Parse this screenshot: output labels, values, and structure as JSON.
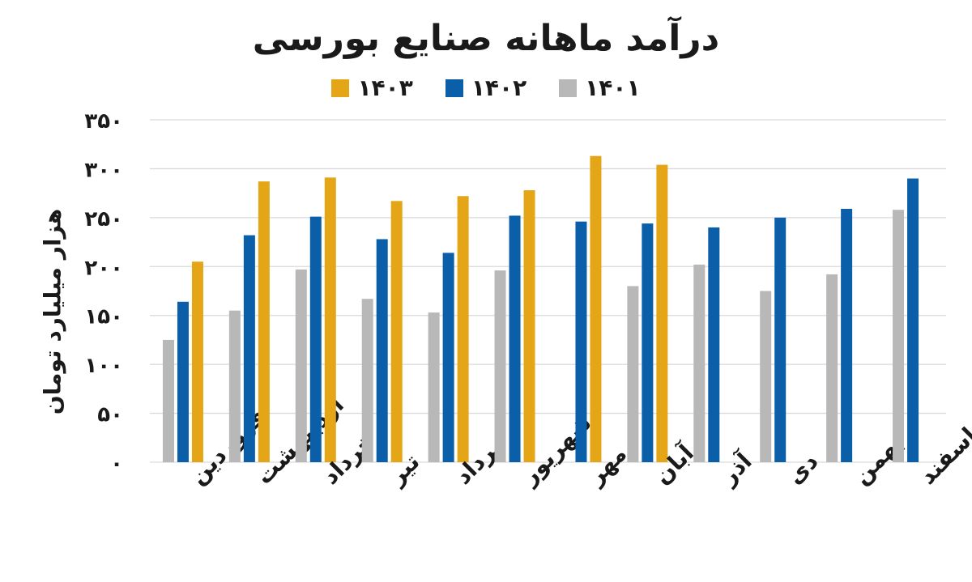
{
  "chart_data": {
    "type": "bar",
    "title": "درآمد ماهانه صنایع بورسی",
    "xlabel": "",
    "ylabel": "هزار میلیارد تومان",
    "categories": [
      "فروردین",
      "اردیبهشت",
      "خرداد",
      "تیر",
      "مرداد",
      "شهریور",
      "مهر",
      "آبان",
      "آذر",
      "دی",
      "بهمن",
      "اسفند"
    ],
    "series": [
      {
        "name": "۱۴۰۱",
        "color": "#b8b8b8",
        "values": [
          125,
          155,
          197,
          167,
          153,
          196,
          null,
          180,
          202,
          175,
          192,
          258
        ]
      },
      {
        "name": "۱۴۰۲",
        "color": "#0b5ea8",
        "values": [
          164,
          232,
          251,
          228,
          214,
          252,
          246,
          244,
          240,
          250,
          259,
          290
        ]
      },
      {
        "name": "۱۴۰۳",
        "color": "#e4a617",
        "values": [
          205,
          287,
          291,
          267,
          272,
          278,
          313,
          304,
          null,
          null,
          null,
          null
        ]
      }
    ],
    "ylim": [
      0,
      350
    ],
    "yticks": [
      0,
      50,
      100,
      150,
      200,
      250,
      300,
      350
    ],
    "ytick_labels": [
      "۰",
      "۵۰",
      "۱۰۰",
      "۱۵۰",
      "۲۰۰",
      "۲۵۰",
      "۳۰۰",
      "۳۵۰"
    ],
    "grid": true,
    "legend_position": "top-center",
    "legend_order": [
      "۱۴۰۳",
      "۱۴۰۲",
      "۱۴۰۱"
    ]
  }
}
